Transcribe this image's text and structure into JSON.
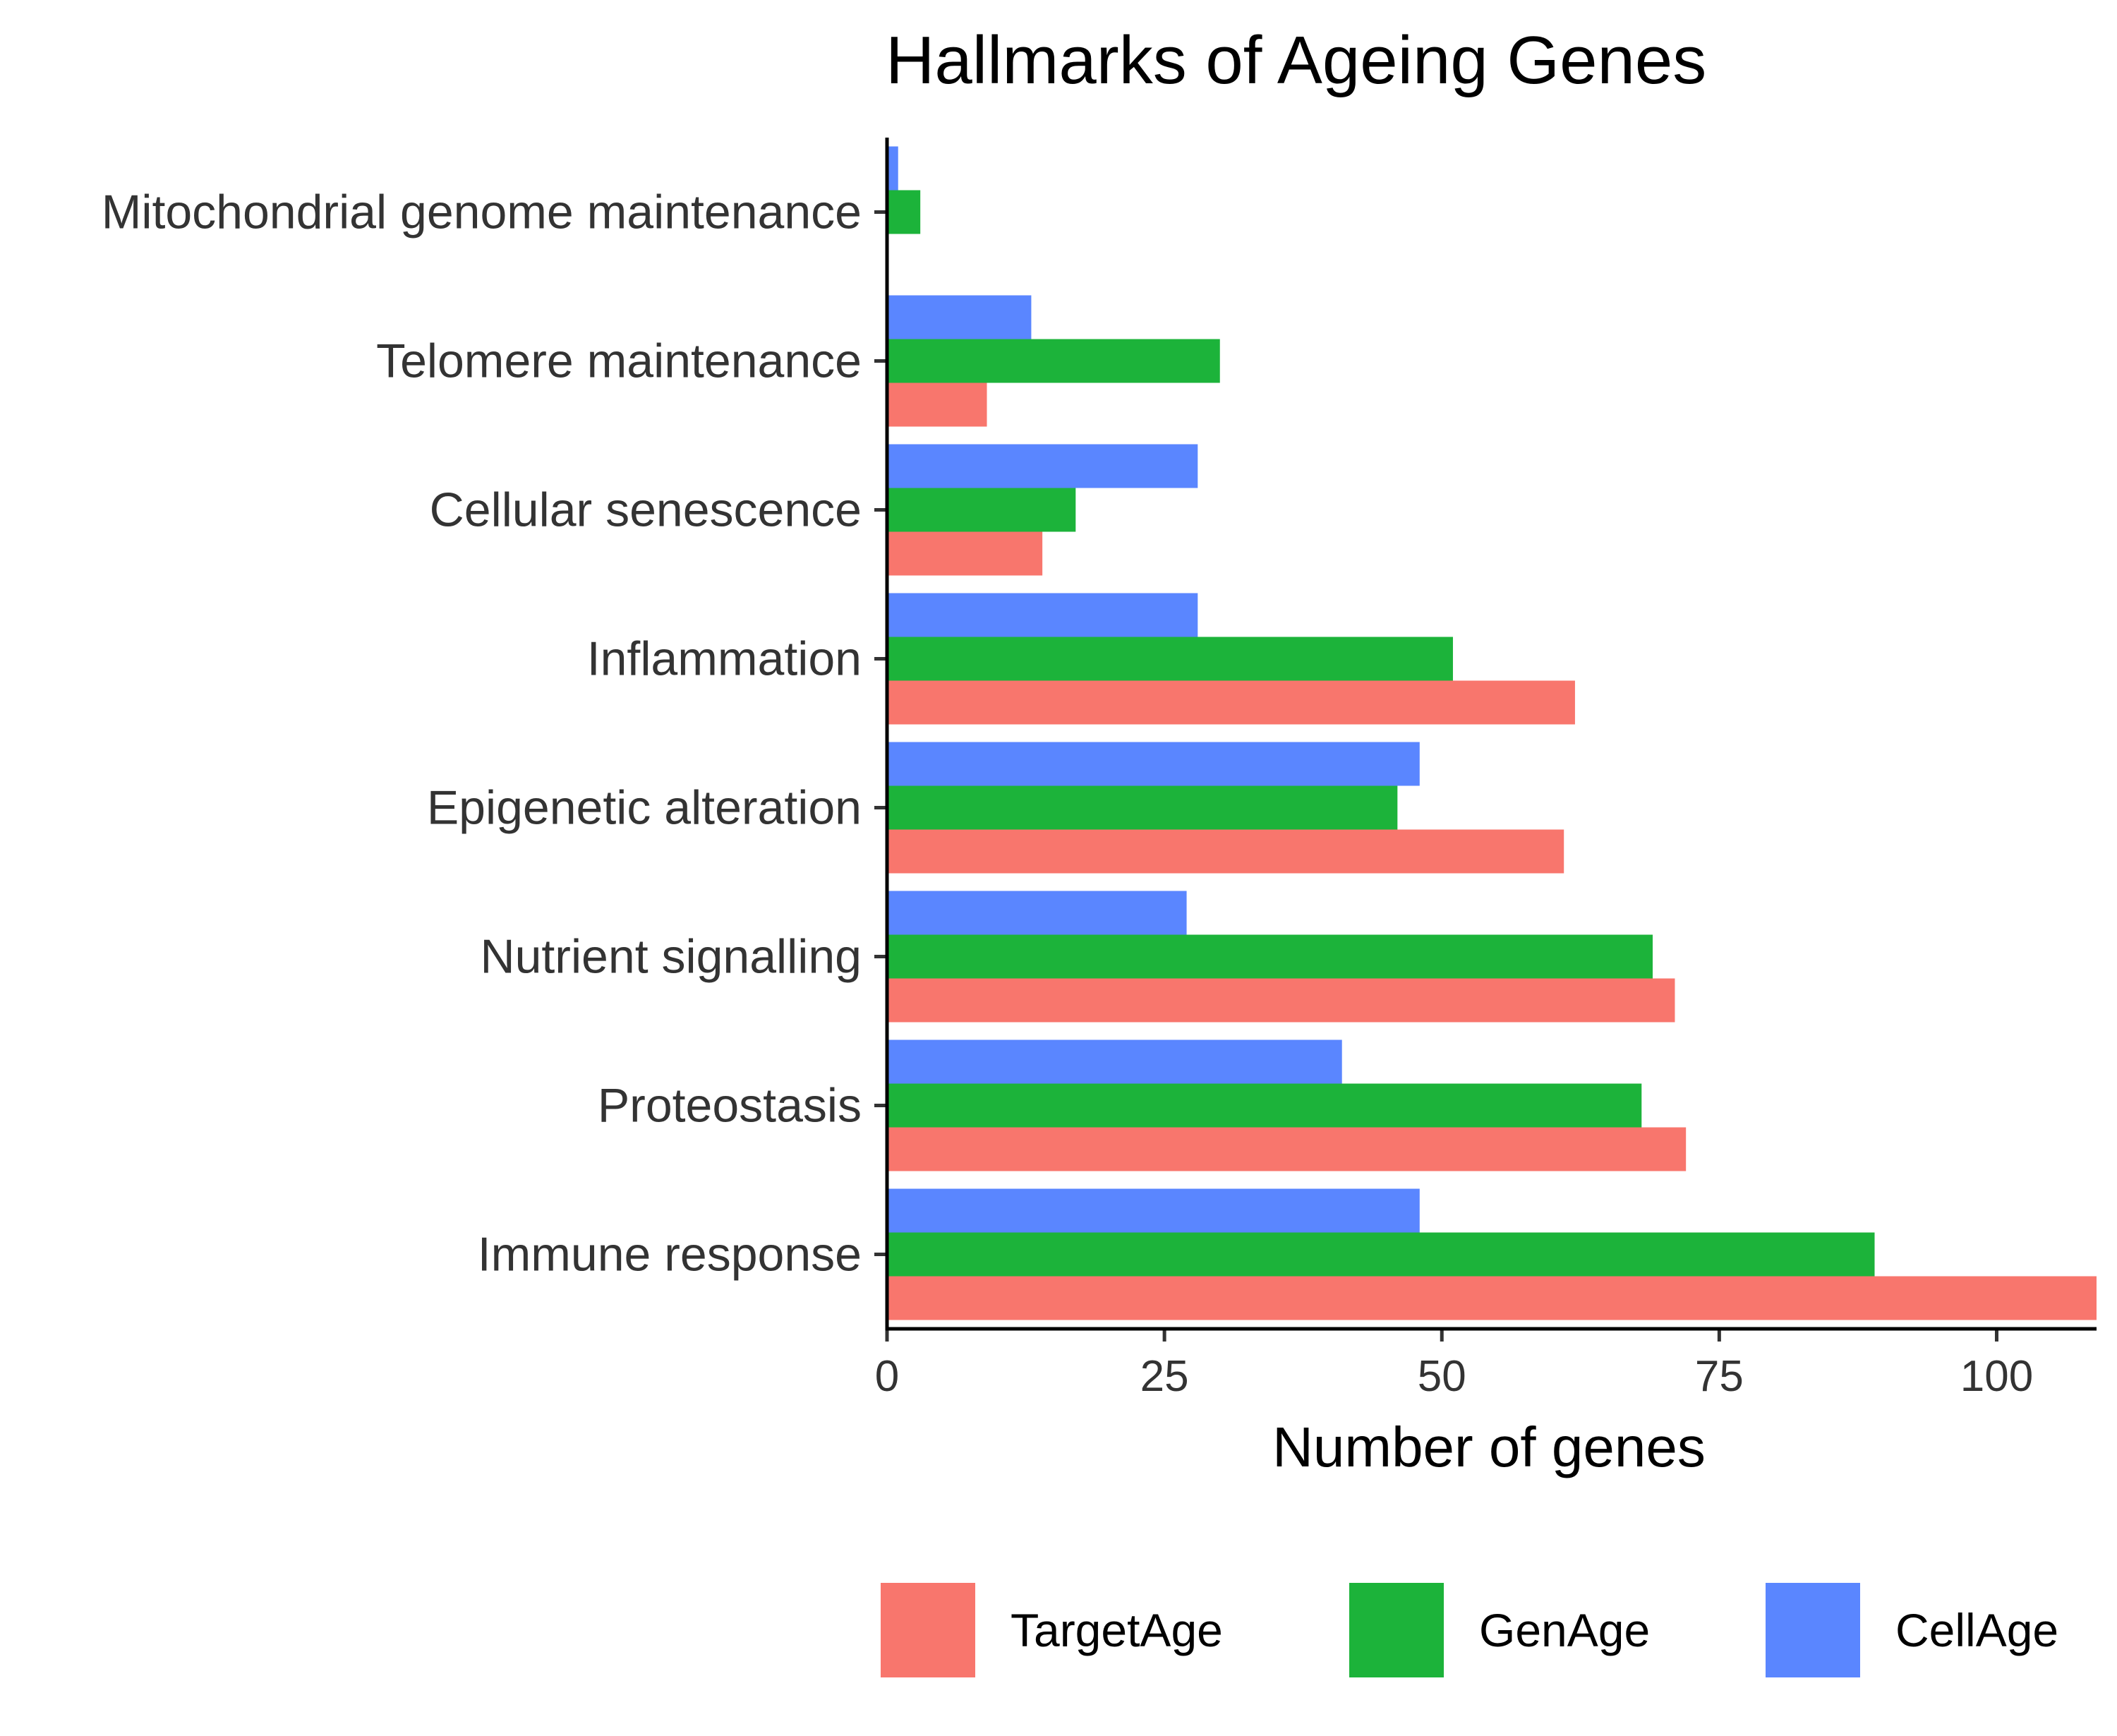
{
  "chart_data": {
    "type": "bar",
    "orientation": "horizontal",
    "title": "Hallmarks of Ageing Genes",
    "xlabel": "Number of genes",
    "ylabel": "",
    "xlim": [
      0,
      109
    ],
    "xticks": [
      0,
      25,
      50,
      75,
      100
    ],
    "grid": false,
    "legend_position": "bottom",
    "categories": [
      "Immune response",
      "Proteostasis",
      "Nutrient signalling",
      "Epigenetic alteration",
      "Inflammation",
      "Cellular senescence",
      "Telomere maintenance",
      "Mitochondrial genome maintenance"
    ],
    "series": [
      {
        "name": "TargetAge",
        "color": "#F8766D",
        "values": [
          110,
          72,
          71,
          61,
          62,
          14,
          9,
          0
        ]
      },
      {
        "name": "GenAge",
        "color": "#1CB33A",
        "values": [
          89,
          68,
          69,
          46,
          51,
          17,
          30,
          3
        ]
      },
      {
        "name": "CellAge",
        "color": "#5A86FF",
        "values": [
          48,
          41,
          27,
          48,
          28,
          28,
          13,
          1
        ]
      }
    ]
  }
}
